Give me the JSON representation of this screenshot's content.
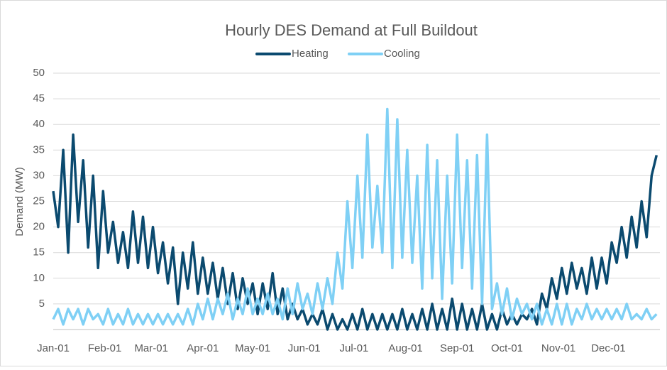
{
  "chart_data": {
    "type": "line",
    "title": "Hourly DES Demand at Full Buildout",
    "ylabel": "Demand (MW)",
    "legend": "top",
    "grid": true,
    "xlim": [
      0,
      365
    ],
    "xticks": [
      {
        "value": 0,
        "label": "Jan-01"
      },
      {
        "value": 31,
        "label": "Feb-01"
      },
      {
        "value": 59,
        "label": "Mar-01"
      },
      {
        "value": 90,
        "label": "Apr-01"
      },
      {
        "value": 120,
        "label": "May-01"
      },
      {
        "value": 151,
        "label": "Jun-01"
      },
      {
        "value": 181,
        "label": "Jul-01"
      },
      {
        "value": 212,
        "label": "Aug-01"
      },
      {
        "value": 243,
        "label": "Sep-01"
      },
      {
        "value": 273,
        "label": "Oct-01"
      },
      {
        "value": 304,
        "label": "Nov-01"
      },
      {
        "value": 334,
        "label": "Dec-01"
      }
    ],
    "ylim": [
      0,
      50
    ],
    "yticks": [
      5,
      10,
      15,
      20,
      25,
      30,
      35,
      40,
      45,
      50
    ],
    "x": [
      0,
      3,
      6,
      9,
      12,
      15,
      18,
      21,
      24,
      27,
      30,
      33,
      36,
      39,
      42,
      45,
      48,
      51,
      54,
      57,
      60,
      63,
      66,
      69,
      72,
      75,
      78,
      81,
      84,
      87,
      90,
      93,
      96,
      99,
      102,
      105,
      108,
      111,
      114,
      117,
      120,
      123,
      126,
      129,
      132,
      135,
      138,
      141,
      144,
      147,
      150,
      153,
      156,
      159,
      162,
      165,
      168,
      171,
      174,
      177,
      180,
      183,
      186,
      189,
      192,
      195,
      198,
      201,
      204,
      207,
      210,
      213,
      216,
      219,
      222,
      225,
      228,
      231,
      234,
      237,
      240,
      243,
      246,
      249,
      252,
      255,
      258,
      261,
      264,
      267,
      270,
      273,
      276,
      279,
      282,
      285,
      288,
      291,
      294,
      297,
      300,
      303,
      306,
      309,
      312,
      315,
      318,
      321,
      324,
      327,
      330,
      333,
      336,
      339,
      342,
      345,
      348,
      351,
      354,
      357,
      360,
      363
    ],
    "series": [
      {
        "name": "Heating",
        "color": "#0b4a6f",
        "values": [
          27,
          20,
          35,
          15,
          38,
          21,
          33,
          16,
          30,
          12,
          27,
          15,
          21,
          13,
          19,
          12,
          23,
          13,
          22,
          12,
          20,
          11,
          17,
          9,
          16,
          5,
          15,
          8,
          17,
          7,
          14,
          7,
          13,
          6,
          12,
          5,
          11,
          4,
          10,
          5,
          9,
          3,
          9,
          4,
          11,
          3,
          8,
          2,
          5,
          2,
          4,
          1,
          3,
          1,
          4,
          0,
          3,
          0,
          2,
          0,
          3,
          0,
          4,
          0,
          3,
          0,
          3,
          0,
          3,
          0,
          4,
          0,
          3,
          0,
          4,
          0,
          5,
          0,
          4,
          0,
          6,
          0,
          5,
          0,
          4,
          0,
          5,
          0,
          3,
          0,
          4,
          1,
          3,
          1,
          3,
          2,
          4,
          1,
          7,
          4,
          10,
          6,
          12,
          7,
          13,
          8,
          12,
          7,
          14,
          8,
          14,
          9,
          17,
          13,
          20,
          14,
          22,
          16,
          25,
          18,
          30,
          34
        ]
      },
      {
        "name": "Cooling",
        "color": "#7fd0f5",
        "values": [
          2,
          4,
          1,
          4,
          2,
          4,
          1,
          4,
          2,
          3,
          1,
          4,
          1,
          3,
          1,
          4,
          1,
          3,
          1,
          3,
          1,
          3,
          1,
          3,
          1,
          3,
          1,
          4,
          1,
          5,
          2,
          6,
          2,
          6,
          3,
          7,
          2,
          6,
          3,
          8,
          3,
          6,
          3,
          7,
          3,
          6,
          2,
          8,
          3,
          9,
          4,
          7,
          3,
          9,
          4,
          10,
          5,
          15,
          8,
          25,
          12,
          30,
          14,
          38,
          16,
          28,
          15,
          43,
          12,
          41,
          14,
          35,
          13,
          30,
          8,
          36,
          10,
          33,
          6,
          30,
          9,
          38,
          12,
          33,
          8,
          34,
          5,
          38,
          4,
          9,
          3,
          8,
          2,
          6,
          3,
          5,
          2,
          5,
          1,
          4,
          1,
          5,
          1,
          5,
          1,
          4,
          2,
          5,
          2,
          4,
          2,
          4,
          2,
          4,
          2,
          5,
          2,
          3,
          2,
          4,
          2,
          3
        ]
      }
    ]
  }
}
